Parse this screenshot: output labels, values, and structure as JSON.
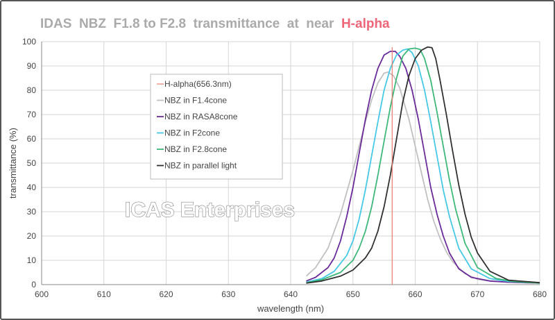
{
  "title": {
    "main": "IDAS  NBZ  F1.8 to F2.8  transmittance  at  near  ",
    "highlight": "H-alpha"
  },
  "watermark": "ICAS Enterprises",
  "colors": {
    "highlight": "#ee6677",
    "halpha": "#e87a70",
    "f14": "#c0c0c0",
    "rasa8": "#6a2a9a",
    "f2": "#46c8e8",
    "f28": "#3cb878",
    "parallel": "#303030",
    "grid": "#d6d6d6"
  },
  "chart_data": {
    "type": "line",
    "title": "IDAS  NBZ  F1.8 to F2.8  transmittance  at  near  H-alpha",
    "xlabel": "wavelength (nm)",
    "ylabel": "transmittance (%)",
    "xlim": [
      600,
      680
    ],
    "ylim": [
      0,
      100
    ],
    "xticks": [
      600,
      610,
      620,
      630,
      640,
      650,
      660,
      670,
      680
    ],
    "yticks": [
      0,
      10,
      20,
      30,
      40,
      50,
      60,
      70,
      80,
      90,
      100
    ],
    "grid": true,
    "legend_position": "upper-left",
    "vline": {
      "name": "H-alpha(656.3nm)",
      "x": 656.3,
      "color": "#e87a70"
    },
    "series": [
      {
        "name": "NBZ   in F1.4cone",
        "color": "#c0c0c0",
        "x": [
          642.5,
          644,
          646,
          648,
          650,
          652,
          653,
          654,
          655,
          655.6,
          656.5,
          657.5,
          659,
          660,
          661,
          662,
          663,
          664,
          665,
          666,
          668,
          670,
          672,
          675,
          680
        ],
        "y": [
          3.5,
          7,
          15,
          29,
          47,
          67,
          76,
          83,
          87,
          87.5,
          86,
          81,
          68,
          57,
          46,
          35,
          26,
          19,
          13.5,
          9.5,
          4.5,
          2.2,
          1.4,
          1,
          0.7
        ]
      },
      {
        "name": "NBZ   in RASA8cone",
        "color": "#6a2a9a",
        "x": [
          642.5,
          644,
          646,
          647,
          648,
          649,
          650,
          651,
          652,
          653,
          654,
          655,
          656,
          656.8,
          657.5,
          658.5,
          659.5,
          660.5,
          661.5,
          662.5,
          663.5,
          664.5,
          665.5,
          667,
          669,
          672,
          675,
          680
        ],
        "y": [
          1.5,
          3,
          7,
          11,
          18,
          28,
          40,
          54,
          68,
          80,
          89,
          94.5,
          96,
          96,
          94,
          89,
          80,
          68,
          54,
          40,
          29,
          20,
          13,
          6.5,
          3,
          1.5,
          1,
          0.6
        ]
      },
      {
        "name": "NBZ   in F2cone",
        "color": "#46c8e8",
        "x": [
          642.5,
          645,
          647,
          649,
          650,
          651,
          652,
          653,
          654,
          655,
          656,
          657,
          658,
          658.8,
          659.5,
          660.5,
          661.5,
          662.5,
          663.5,
          664.5,
          665.5,
          667,
          669,
          672,
          675,
          680
        ],
        "y": [
          1,
          2.5,
          5.5,
          12,
          18,
          27,
          39,
          53,
          67,
          80,
          89,
          94.5,
          96.5,
          97,
          95.5,
          90,
          80,
          67,
          53,
          39,
          28,
          15,
          6.5,
          2.5,
          1.3,
          0.7
        ]
      },
      {
        "name": "NBZ   in F2.8cone",
        "color": "#3cb878",
        "x": [
          642.5,
          645,
          648,
          650,
          651,
          652,
          653,
          654,
          655,
          656,
          657,
          658,
          659,
          660,
          660.8,
          661.5,
          662.5,
          663.5,
          664.5,
          665.5,
          666.5,
          668,
          670,
          673,
          676,
          680
        ],
        "y": [
          0.8,
          2,
          5,
          10,
          15,
          22,
          32,
          45,
          59,
          73,
          85,
          94,
          97,
          97.3,
          96.8,
          93,
          84,
          71,
          57,
          43,
          31,
          17,
          7,
          2.5,
          1.2,
          0.6
        ]
      },
      {
        "name": "NBZ   in parallel light",
        "color": "#303030",
        "x": [
          642.5,
          645,
          648,
          650,
          652,
          653,
          654,
          655,
          656,
          657,
          658,
          659,
          660,
          661,
          662,
          662.7,
          663.3,
          664,
          665,
          666,
          667,
          668,
          669,
          670,
          672,
          675,
          680
        ],
        "y": [
          0.6,
          1.5,
          3.5,
          6,
          11,
          15,
          22,
          32,
          45,
          60,
          75,
          86,
          93,
          96.5,
          97.8,
          97.5,
          93,
          84,
          70,
          55,
          41,
          29,
          19.5,
          13,
          5.5,
          1.8,
          0.8
        ]
      }
    ]
  }
}
